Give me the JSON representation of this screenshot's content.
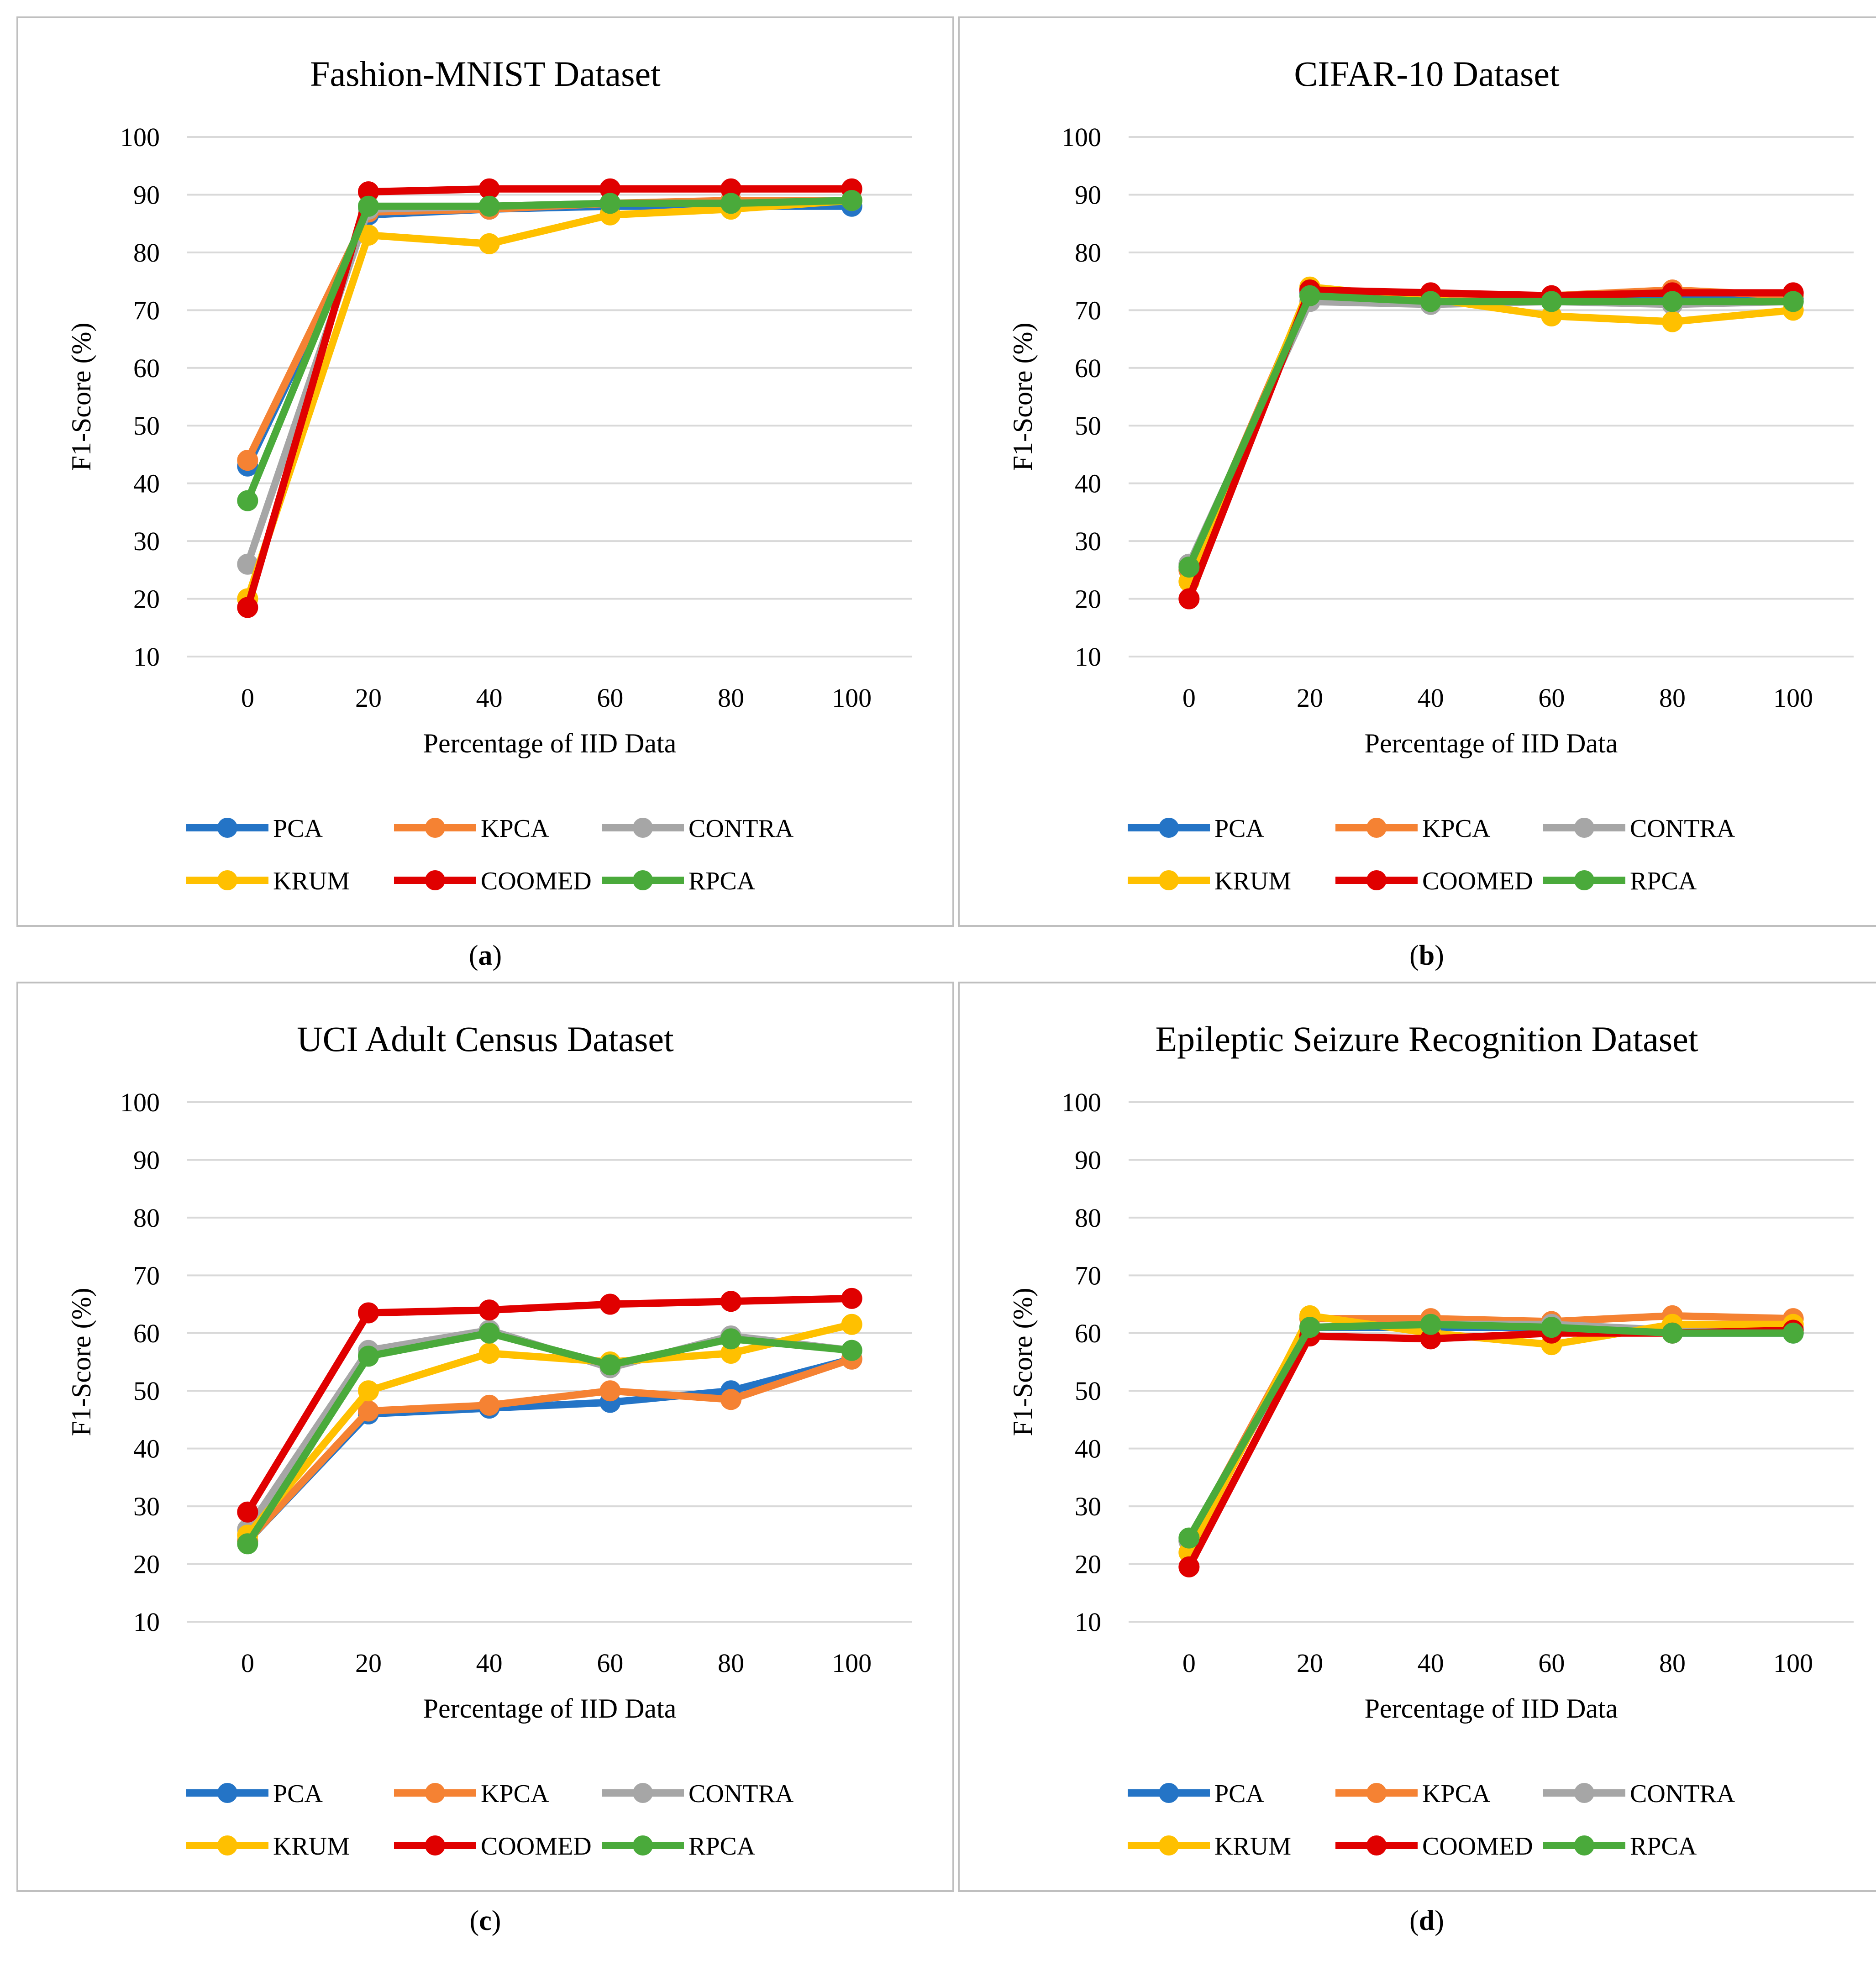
{
  "chart_data": [
    {
      "type": "line",
      "title": "Fashion-MNIST Dataset",
      "xlabel": "Percentage of IID Data",
      "ylabel": "F1-Score (%)",
      "caption_letter": "a",
      "categories": [
        "0",
        "20",
        "40",
        "60",
        "80",
        "100"
      ],
      "ylim": [
        10,
        100
      ],
      "yticks": [
        10,
        20,
        30,
        40,
        50,
        60,
        70,
        80,
        90,
        100
      ],
      "series": [
        {
          "name": "PCA",
          "color": "#2474C6",
          "values": [
            43,
            86.5,
            87.5,
            88,
            88,
            88
          ]
        },
        {
          "name": "KPCA",
          "color": "#F58233",
          "values": [
            44,
            87,
            87.5,
            88.5,
            89,
            89
          ]
        },
        {
          "name": "CONTRA",
          "color": "#A6A6A6",
          "values": [
            26,
            87.5,
            88,
            88.5,
            88.5,
            89
          ]
        },
        {
          "name": "KRUM",
          "color": "#FFC000",
          "values": [
            20,
            83,
            81.5,
            86.5,
            87.5,
            89
          ]
        },
        {
          "name": "COOMED",
          "color": "#E00000",
          "values": [
            18.5,
            90.5,
            91,
            91,
            91,
            91
          ]
        },
        {
          "name": "RPCA",
          "color": "#4AAA3B",
          "values": [
            37,
            88,
            88,
            88.5,
            88.5,
            89
          ]
        }
      ]
    },
    {
      "type": "line",
      "title": "CIFAR-10 Dataset",
      "xlabel": "Percentage of IID Data",
      "ylabel": "F1-Score (%)",
      "caption_letter": "b",
      "categories": [
        "0",
        "20",
        "40",
        "60",
        "80",
        "100"
      ],
      "ylim": [
        10,
        100
      ],
      "yticks": [
        10,
        20,
        30,
        40,
        50,
        60,
        70,
        80,
        90,
        100
      ],
      "series": [
        {
          "name": "PCA",
          "color": "#2474C6",
          "values": [
            25,
            73,
            72,
            72,
            72,
            72
          ]
        },
        {
          "name": "KPCA",
          "color": "#F58233",
          "values": [
            25,
            73.5,
            72.5,
            72.5,
            73.5,
            72.5
          ]
        },
        {
          "name": "CONTRA",
          "color": "#A6A6A6",
          "values": [
            26,
            71.5,
            71,
            71.5,
            71,
            71.5
          ]
        },
        {
          "name": "KRUM",
          "color": "#FFC000",
          "values": [
            23,
            74,
            72,
            69,
            68,
            70
          ]
        },
        {
          "name": "COOMED",
          "color": "#E00000",
          "values": [
            20,
            73.5,
            73,
            72.5,
            73,
            73
          ]
        },
        {
          "name": "RPCA",
          "color": "#4AAA3B",
          "values": [
            25.5,
            72.5,
            71.5,
            71.5,
            71.5,
            71.5
          ]
        }
      ]
    },
    {
      "type": "line",
      "title": "UCI Adult Census Dataset",
      "xlabel": "Percentage of IID Data",
      "ylabel": "F1-Score (%)",
      "caption_letter": "c",
      "categories": [
        "0",
        "20",
        "40",
        "60",
        "80",
        "100"
      ],
      "ylim": [
        10,
        100
      ],
      "yticks": [
        10,
        20,
        30,
        40,
        50,
        60,
        70,
        80,
        90,
        100
      ],
      "series": [
        {
          "name": "PCA",
          "color": "#2474C6",
          "values": [
            24,
            46,
            47,
            48,
            50,
            55.5
          ]
        },
        {
          "name": "KPCA",
          "color": "#F58233",
          "values": [
            24,
            46.5,
            47.5,
            50,
            48.5,
            55.5
          ]
        },
        {
          "name": "CONTRA",
          "color": "#A6A6A6",
          "values": [
            26,
            57,
            60.5,
            54,
            59.5,
            57
          ]
        },
        {
          "name": "KRUM",
          "color": "#FFC000",
          "values": [
            25,
            50,
            56.5,
            55,
            56.5,
            61.5
          ]
        },
        {
          "name": "COOMED",
          "color": "#E00000",
          "values": [
            29,
            63.5,
            64,
            65,
            65.5,
            66
          ]
        },
        {
          "name": "RPCA",
          "color": "#4AAA3B",
          "values": [
            23.5,
            56,
            60,
            54.5,
            59,
            57
          ]
        }
      ]
    },
    {
      "type": "line",
      "title": "Epileptic Seizure Recognition Dataset",
      "xlabel": "Percentage of IID Data",
      "ylabel": "F1-Score (%)",
      "caption_letter": "d",
      "categories": [
        "0",
        "20",
        "40",
        "60",
        "80",
        "100"
      ],
      "ylim": [
        10,
        100
      ],
      "yticks": [
        10,
        20,
        30,
        40,
        50,
        60,
        70,
        80,
        90,
        100
      ],
      "series": [
        {
          "name": "PCA",
          "color": "#2474C6",
          "values": [
            24,
            61,
            61,
            61,
            60,
            60
          ]
        },
        {
          "name": "KPCA",
          "color": "#F58233",
          "values": [
            24,
            62.5,
            62.5,
            62,
            63,
            62.5
          ]
        },
        {
          "name": "CONTRA",
          "color": "#A6A6A6",
          "values": [
            24,
            61,
            61.5,
            61.5,
            60.5,
            61
          ]
        },
        {
          "name": "KRUM",
          "color": "#FFC000",
          "values": [
            22,
            63,
            60,
            58,
            61.5,
            61.5
          ]
        },
        {
          "name": "COOMED",
          "color": "#E00000",
          "values": [
            19.5,
            59.5,
            59,
            60,
            60,
            60.5
          ]
        },
        {
          "name": "RPCA",
          "color": "#4AAA3B",
          "values": [
            24.5,
            61,
            61.5,
            61,
            60,
            60
          ]
        }
      ]
    }
  ]
}
